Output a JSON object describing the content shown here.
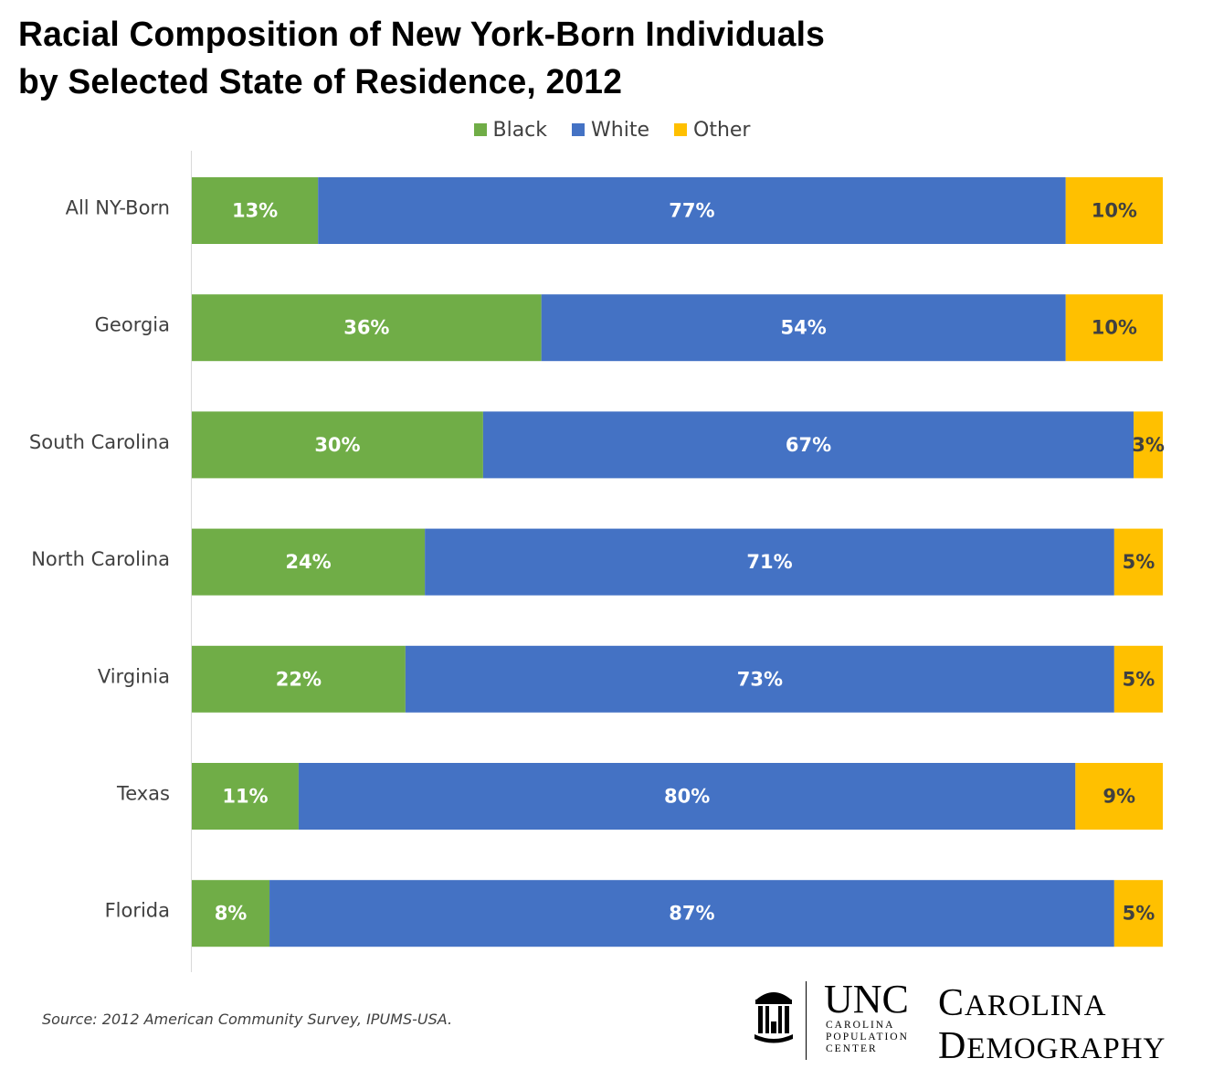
{
  "title": {
    "line1": "Racial Composition of New York-Born Individuals",
    "line2": "by Selected State of Residence, 2012"
  },
  "legend": [
    {
      "label": "Black",
      "color": "#70AD47"
    },
    {
      "label": "White",
      "color": "#4472C4"
    },
    {
      "label": "Other",
      "color": "#FFC000"
    }
  ],
  "chart_data": {
    "type": "bar",
    "orientation": "horizontal",
    "stacked": "percent",
    "title": "Racial Composition of New York-Born Individuals by Selected State of Residence, 2012",
    "categories": [
      "All NY-Born",
      "Georgia",
      "South Carolina",
      "North Carolina",
      "Virginia",
      "Texas",
      "Florida"
    ],
    "series": [
      {
        "name": "Black",
        "color": "#70AD47",
        "label_color": "#ffffff",
        "values": [
          13,
          36,
          30,
          24,
          22,
          11,
          8
        ]
      },
      {
        "name": "White",
        "color": "#4472C4",
        "label_color": "#ffffff",
        "values": [
          77,
          54,
          67,
          71,
          73,
          80,
          87
        ]
      },
      {
        "name": "Other",
        "color": "#FFC000",
        "label_color": "#404040",
        "values": [
          10,
          10,
          3,
          5,
          5,
          9,
          5
        ]
      }
    ],
    "value_suffix": "%",
    "xlim": [
      0,
      100
    ],
    "grid": false,
    "legend_position": "top"
  },
  "source": "Source: 2012 American Community Survey, IPUMS-USA.",
  "logo": {
    "unc": "UNC",
    "cpc_line1": "CAROLINA",
    "cpc_line2": "POPULATION",
    "cpc_line3": "CENTER",
    "cd_line1": "Carolina",
    "cd_line2": "Demography"
  }
}
